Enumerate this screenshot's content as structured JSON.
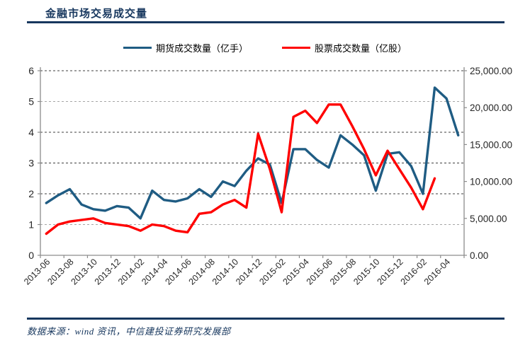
{
  "page": {
    "title": "金融市场交易成交量",
    "source_note": "数据来源：wind 资讯，中信建投证券研究发展部"
  },
  "chart_data": {
    "type": "line",
    "title": "金融市场交易成交量",
    "grid": "horizontal-dashed",
    "legend_position": "top-center",
    "categories": [
      "2013-06",
      "2013-07",
      "2013-08",
      "2013-09",
      "2013-10",
      "2013-11",
      "2013-12",
      "2014-01",
      "2014-02",
      "2014-03",
      "2014-04",
      "2014-05",
      "2014-06",
      "2014-07",
      "2014-08",
      "2014-09",
      "2014-10",
      "2014-11",
      "2014-12",
      "2015-01",
      "2015-02",
      "2015-03",
      "2015-04",
      "2015-05",
      "2015-06",
      "2015-07",
      "2015-08",
      "2015-09",
      "2015-10",
      "2015-11",
      "2015-12",
      "2016-01",
      "2016-02",
      "2016-03",
      "2016-04",
      "2016-05"
    ],
    "x_tick_labels": [
      "2013-06",
      "2013-08",
      "2013-10",
      "2013-12",
      "2014-02",
      "2014-04",
      "2014-06",
      "2014-08",
      "2014-10",
      "2014-12",
      "2015-02",
      "2015-04",
      "2015-06",
      "2015-08",
      "2015-10",
      "2015-12",
      "2016-02",
      "2016-04"
    ],
    "left_axis": {
      "min": 0,
      "max": 6,
      "step": 1,
      "tick_labels": [
        "0",
        "1",
        "2",
        "3",
        "4",
        "5",
        "6"
      ]
    },
    "right_axis": {
      "min": 0,
      "max": 25000,
      "step": 5000,
      "tick_labels": [
        "0.00",
        "5,000.00",
        "10,000.00",
        "15,000.00",
        "20,000.00",
        "25,000.00"
      ]
    },
    "series": [
      {
        "name": "期货成交数量（亿手）",
        "unit": "亿手",
        "axis": "left",
        "color": "#1F5C83",
        "values": [
          1.7,
          1.95,
          2.15,
          1.65,
          1.5,
          1.45,
          1.6,
          1.55,
          1.2,
          2.1,
          1.8,
          1.75,
          1.85,
          2.15,
          1.9,
          2.4,
          2.25,
          2.75,
          3.15,
          2.95,
          1.7,
          3.45,
          3.45,
          3.1,
          2.85,
          3.9,
          3.6,
          3.25,
          2.1,
          3.3,
          3.35,
          2.9,
          2.0,
          5.45,
          5.1,
          3.9
        ]
      },
      {
        "name": "股票成交数量（亿股）",
        "unit": "亿股",
        "axis": "right",
        "color": "#FF0000",
        "values": [
          2917,
          4167,
          4583,
          4792,
          5000,
          4375,
          4167,
          3958,
          3333,
          4167,
          3958,
          3333,
          3125,
          5625,
          5833,
          6875,
          7500,
          6458,
          16458,
          11667,
          5833,
          18750,
          19583,
          17917,
          20417,
          20417,
          17500,
          14375,
          10833,
          14167,
          11667,
          9167,
          6250,
          10417,
          null,
          null
        ]
      }
    ]
  }
}
